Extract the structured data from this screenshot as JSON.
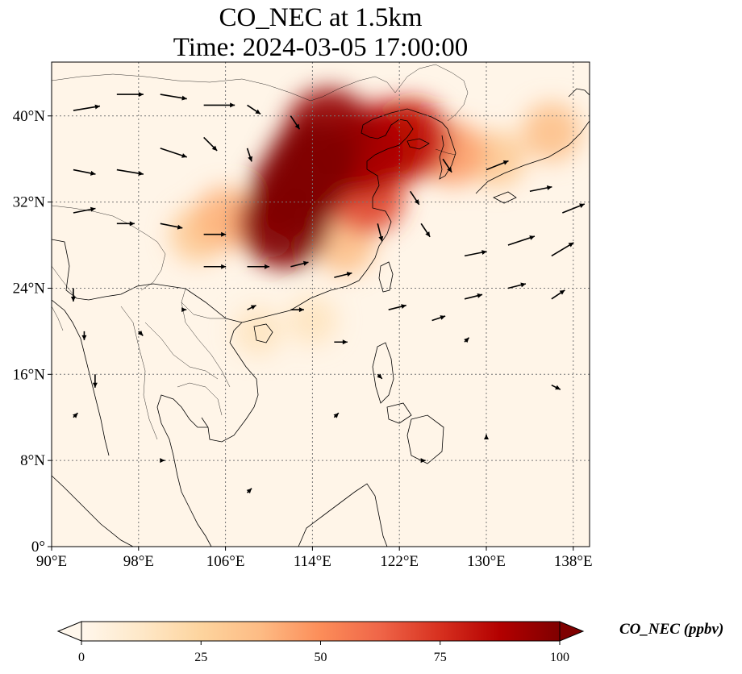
{
  "title": {
    "line1": "CO_NEC at 1.5km",
    "line2": "Time: 2024-03-05 17:00:00"
  },
  "map": {
    "extent": {
      "lon": [
        90,
        139.5
      ],
      "lat": [
        0,
        45
      ]
    },
    "lon_ticks": [
      {
        "value": 90,
        "label": "90°E"
      },
      {
        "value": 98,
        "label": "98°E"
      },
      {
        "value": 106,
        "label": "106°E"
      },
      {
        "value": 114,
        "label": "114°E"
      },
      {
        "value": 122,
        "label": "122°E"
      },
      {
        "value": 130,
        "label": "130°E"
      },
      {
        "value": 138,
        "label": "138°E"
      }
    ],
    "lat_ticks": [
      {
        "value": 0,
        "label": "0°"
      },
      {
        "value": 8,
        "label": "8°N"
      },
      {
        "value": 16,
        "label": "16°N"
      },
      {
        "value": 24,
        "label": "24°N"
      },
      {
        "value": 32,
        "label": "32°N"
      },
      {
        "value": 40,
        "label": "40°N"
      }
    ],
    "gridlines": true,
    "plume": [
      {
        "lon": 114.0,
        "lat": 35.5,
        "level": 100
      },
      {
        "lon": 112.5,
        "lat": 33.0,
        "level": 100
      },
      {
        "lon": 111.5,
        "lat": 30.0,
        "level": 100
      },
      {
        "lon": 115.5,
        "lat": 38.5,
        "level": 95
      },
      {
        "lon": 118.5,
        "lat": 36.5,
        "level": 90
      },
      {
        "lon": 121.0,
        "lat": 37.5,
        "level": 85
      },
      {
        "lon": 123.0,
        "lat": 37.8,
        "level": 80
      },
      {
        "lon": 119.0,
        "lat": 32.5,
        "level": 70
      },
      {
        "lon": 110.0,
        "lat": 30.0,
        "level": 55
      },
      {
        "lon": 106.0,
        "lat": 30.5,
        "level": 40
      },
      {
        "lon": 103.5,
        "lat": 29.0,
        "level": 30
      },
      {
        "lon": 117.0,
        "lat": 28.0,
        "level": 35
      },
      {
        "lon": 127.0,
        "lat": 36.5,
        "level": 45
      },
      {
        "lon": 131.0,
        "lat": 36.0,
        "level": 30
      },
      {
        "lon": 136.0,
        "lat": 38.5,
        "level": 35
      },
      {
        "lon": 109.0,
        "lat": 20.0,
        "level": 15
      },
      {
        "lon": 114.0,
        "lat": 21.0,
        "level": 15
      }
    ],
    "wind_vectors": [
      {
        "lon": 92,
        "lat": 40.5,
        "u": 6,
        "v": 1
      },
      {
        "lon": 96,
        "lat": 42,
        "u": 6,
        "v": 0
      },
      {
        "lon": 100,
        "lat": 42,
        "u": 6,
        "v": -1
      },
      {
        "lon": 104,
        "lat": 41,
        "u": 7,
        "v": 0
      },
      {
        "lon": 108,
        "lat": 41,
        "u": 3,
        "v": -2
      },
      {
        "lon": 112,
        "lat": 40,
        "u": 2,
        "v": -3
      },
      {
        "lon": 92,
        "lat": 35,
        "u": 5,
        "v": -1
      },
      {
        "lon": 96,
        "lat": 35,
        "u": 6,
        "v": -1
      },
      {
        "lon": 100,
        "lat": 37,
        "u": 6,
        "v": -2
      },
      {
        "lon": 104,
        "lat": 38,
        "u": 3,
        "v": -3
      },
      {
        "lon": 108,
        "lat": 37,
        "u": 1,
        "v": -3
      },
      {
        "lon": 92,
        "lat": 31,
        "u": 5,
        "v": 1
      },
      {
        "lon": 96,
        "lat": 30,
        "u": 4,
        "v": 0
      },
      {
        "lon": 100,
        "lat": 30,
        "u": 5,
        "v": -1
      },
      {
        "lon": 104,
        "lat": 29,
        "u": 5,
        "v": 0
      },
      {
        "lon": 104,
        "lat": 26,
        "u": 5,
        "v": 0
      },
      {
        "lon": 108,
        "lat": 26,
        "u": 5,
        "v": 0
      },
      {
        "lon": 112,
        "lat": 26,
        "u": 4,
        "v": 1
      },
      {
        "lon": 116,
        "lat": 25,
        "u": 4,
        "v": 1
      },
      {
        "lon": 120,
        "lat": 30,
        "u": 1,
        "v": -4
      },
      {
        "lon": 124,
        "lat": 30,
        "u": 2,
        "v": -3
      },
      {
        "lon": 123,
        "lat": 33,
        "u": 2,
        "v": -3
      },
      {
        "lon": 126,
        "lat": 36,
        "u": 2,
        "v": -3
      },
      {
        "lon": 130,
        "lat": 35,
        "u": 5,
        "v": 2
      },
      {
        "lon": 134,
        "lat": 33,
        "u": 5,
        "v": 1
      },
      {
        "lon": 137,
        "lat": 31,
        "u": 5,
        "v": 2
      },
      {
        "lon": 128,
        "lat": 27,
        "u": 5,
        "v": 1
      },
      {
        "lon": 132,
        "lat": 28,
        "u": 6,
        "v": 2
      },
      {
        "lon": 136,
        "lat": 27,
        "u": 5,
        "v": 3
      },
      {
        "lon": 128,
        "lat": 23,
        "u": 4,
        "v": 1
      },
      {
        "lon": 132,
        "lat": 24,
        "u": 4,
        "v": 1
      },
      {
        "lon": 136,
        "lat": 23,
        "u": 3,
        "v": 2
      },
      {
        "lon": 121,
        "lat": 22,
        "u": 4,
        "v": 1
      },
      {
        "lon": 125,
        "lat": 21,
        "u": 3,
        "v": 1
      },
      {
        "lon": 112,
        "lat": 22,
        "u": 3,
        "v": 0
      },
      {
        "lon": 116,
        "lat": 19,
        "u": 3,
        "v": 0
      },
      {
        "lon": 108,
        "lat": 22,
        "u": 2,
        "v": 1
      },
      {
        "lon": 92,
        "lat": 24,
        "u": 0,
        "v": -3
      },
      {
        "lon": 93,
        "lat": 20,
        "u": 0,
        "v": -2
      },
      {
        "lon": 94,
        "lat": 16,
        "u": 0,
        "v": -3
      },
      {
        "lon": 98,
        "lat": 20,
        "u": 1,
        "v": -1
      },
      {
        "lon": 102,
        "lat": 22,
        "u": 1,
        "v": 0
      },
      {
        "lon": 120,
        "lat": 16,
        "u": 1,
        "v": -1
      },
      {
        "lon": 128,
        "lat": 19,
        "u": 1,
        "v": 1
      },
      {
        "lon": 136,
        "lat": 15,
        "u": 2,
        "v": -1
      },
      {
        "lon": 124,
        "lat": 8,
        "u": 1,
        "v": 0
      },
      {
        "lon": 100,
        "lat": 8,
        "u": 1,
        "v": 0
      },
      {
        "lon": 108,
        "lat": 5,
        "u": 1,
        "v": 1
      },
      {
        "lon": 92,
        "lat": 12,
        "u": 1,
        "v": 1
      },
      {
        "lon": 116,
        "lat": 12,
        "u": 1,
        "v": 1
      },
      {
        "lon": 130,
        "lat": 10,
        "u": 0,
        "v": 1
      }
    ]
  },
  "colorbar": {
    "label": "CO_NEC (ppbv)",
    "min": 0,
    "max": 100,
    "ticks": [
      {
        "value": 0,
        "label": "0"
      },
      {
        "value": 25,
        "label": "25"
      },
      {
        "value": 50,
        "label": "50"
      },
      {
        "value": 75,
        "label": "75"
      },
      {
        "value": 100,
        "label": "100"
      }
    ],
    "extend": "both",
    "colormap": [
      "#fff7ec",
      "#fee8c8",
      "#fdd49e",
      "#fdbb84",
      "#fc8d59",
      "#ef6548",
      "#d7301f",
      "#b30000",
      "#7f0000"
    ]
  }
}
